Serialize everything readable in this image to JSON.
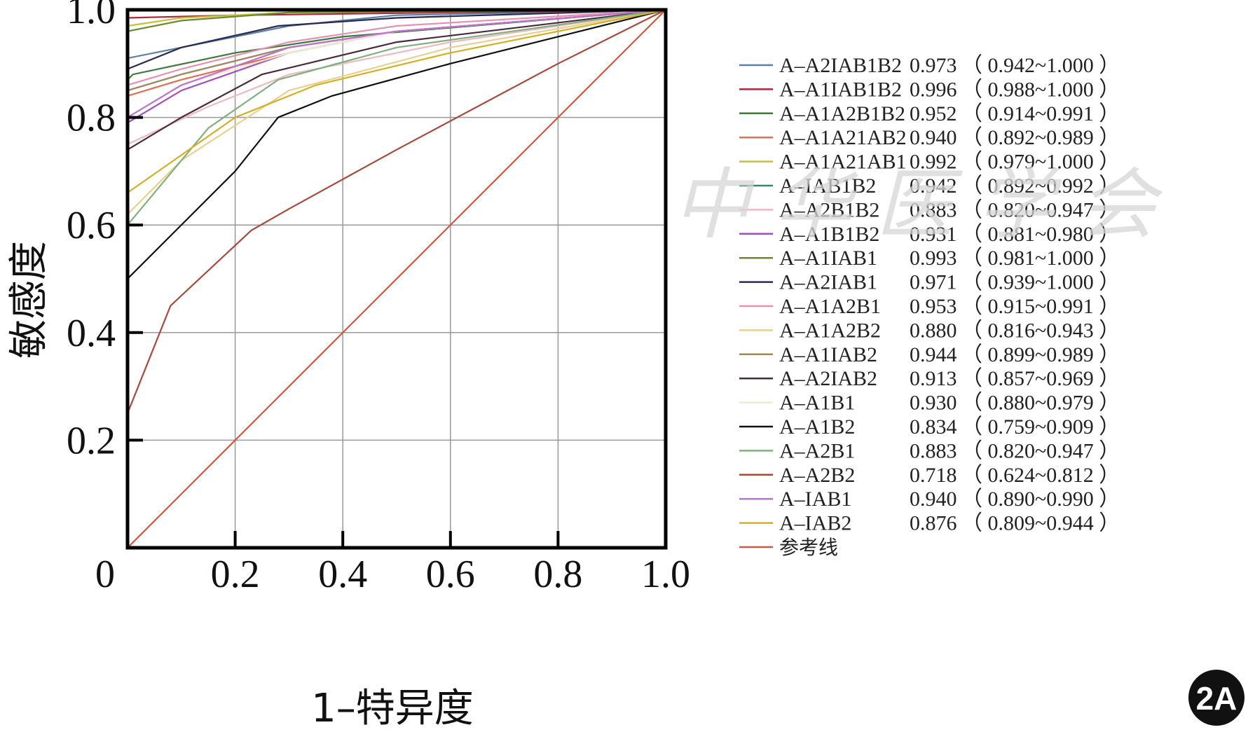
{
  "chart_data": {
    "type": "line",
    "xlabel": "1–特异度",
    "ylabel": "敏感度",
    "xlim": [
      0,
      1
    ],
    "ylim": [
      0,
      1
    ],
    "x_ticks": [
      "0",
      "0.2",
      "0.4",
      "0.6",
      "0.8",
      "1.0"
    ],
    "y_ticks": [
      "0.2",
      "0.4",
      "0.6",
      "0.8",
      "1.0"
    ],
    "grid": true,
    "legend_position": "right",
    "series": [
      {
        "name": "A–A2IAB1B2",
        "auc": "0.973",
        "ci": "（ 0.942~1.000 ）",
        "color": "#5b7fa6",
        "x": [
          0,
          0,
          0.1,
          0.3,
          0.5,
          1.0
        ],
        "y": [
          0,
          0.91,
          0.93,
          0.97,
          0.99,
          1.0
        ]
      },
      {
        "name": "A–A1IAB1B2",
        "auc": "0.996",
        "ci": "（ 0.988~1.000 ）",
        "color": "#b0243c",
        "x": [
          0,
          0,
          0.2,
          1.0
        ],
        "y": [
          0,
          0.985,
          0.99,
          1.0
        ]
      },
      {
        "name": "A–A1A2B1B2",
        "auc": "0.952",
        "ci": "（ 0.914~0.991 ）",
        "color": "#3f7a3a",
        "x": [
          0,
          0,
          0.01,
          0.2,
          0.4,
          1.0
        ],
        "y": [
          0,
          0.87,
          0.88,
          0.92,
          0.95,
          1.0
        ]
      },
      {
        "name": "A–A1A21AB2",
        "auc": "0.940",
        "ci": "（ 0.892~0.989 ）",
        "color": "#e07050",
        "x": [
          0,
          0,
          0.1,
          0.3,
          0.5,
          1.0
        ],
        "y": [
          0,
          0.84,
          0.87,
          0.92,
          0.96,
          1.0
        ]
      },
      {
        "name": "A–A1A21AB1",
        "auc": "0.992",
        "ci": "（ 0.979~1.000 ）",
        "color": "#c8c030",
        "x": [
          0,
          0,
          0.1,
          0.3,
          1.0
        ],
        "y": [
          0,
          0.97,
          0.985,
          0.995,
          1.0
        ]
      },
      {
        "name": "A–IAB1B2",
        "auc": "0.942",
        "ci": "（ 0.892~0.992 ）",
        "color": "#2e8a6a",
        "x": [
          0,
          0,
          0.1,
          0.3,
          0.5,
          1.0
        ],
        "y": [
          0,
          0.85,
          0.88,
          0.93,
          0.96,
          1.0
        ]
      },
      {
        "name": "A–A2B1B2",
        "auc": "0.883",
        "ci": "（ 0.820~0.947 ）",
        "color": "#f0b8c0",
        "x": [
          0,
          0,
          0.15,
          0.3,
          0.6,
          1.0
        ],
        "y": [
          0,
          0.75,
          0.82,
          0.88,
          0.94,
          1.0
        ]
      },
      {
        "name": "A–A1B1B2",
        "auc": "0.931",
        "ci": "（ 0.881~0.980 ）",
        "color": "#a050c0",
        "x": [
          0,
          0,
          0.1,
          0.3,
          0.5,
          1.0
        ],
        "y": [
          0,
          0.79,
          0.85,
          0.92,
          0.96,
          1.0
        ]
      },
      {
        "name": "A–A1IAB1",
        "auc": "0.993",
        "ci": "（ 0.981~1.000 ）",
        "color": "#6a8a30",
        "x": [
          0,
          0,
          0.1,
          0.3,
          1.0
        ],
        "y": [
          0,
          0.96,
          0.98,
          0.995,
          1.0
        ]
      },
      {
        "name": "A–A2IAB1",
        "auc": "0.971",
        "ci": "（ 0.939~1.000 ）",
        "color": "#2a2a55",
        "x": [
          0,
          0,
          0.1,
          0.28,
          0.5,
          1.0
        ],
        "y": [
          0,
          0.89,
          0.93,
          0.97,
          0.985,
          1.0
        ]
      },
      {
        "name": "A–A1A2B1",
        "auc": "0.953",
        "ci": "（ 0.915~0.991 ）",
        "color": "#e890b0",
        "x": [
          0,
          0,
          0.1,
          0.3,
          0.5,
          1.0
        ],
        "y": [
          0,
          0.86,
          0.89,
          0.94,
          0.97,
          1.0
        ]
      },
      {
        "name": "A–A1A2B2",
        "auc": "0.880",
        "ci": "（ 0.816~0.943 ）",
        "color": "#e8d090",
        "x": [
          0,
          0,
          0.1,
          0.3,
          0.6,
          1.0
        ],
        "y": [
          0,
          0.62,
          0.72,
          0.85,
          0.93,
          1.0
        ]
      },
      {
        "name": "A–A1IAB2",
        "auc": "0.944",
        "ci": "（ 0.899~0.989 ）",
        "color": "#a08a60",
        "x": [
          0,
          0,
          0.1,
          0.3,
          0.5,
          1.0
        ],
        "y": [
          0,
          0.85,
          0.88,
          0.93,
          0.96,
          1.0
        ]
      },
      {
        "name": "A–A2IAB2",
        "auc": "0.913",
        "ci": "（ 0.857~0.969 ）",
        "color": "#4a2a3a",
        "x": [
          0,
          0,
          0.1,
          0.25,
          0.5,
          1.0
        ],
        "y": [
          0,
          0.74,
          0.8,
          0.88,
          0.94,
          1.0
        ]
      },
      {
        "name": "A–A1B1",
        "auc": "0.930",
        "ci": "（ 0.880~0.979 ）",
        "color": "#f0ecd0",
        "x": [
          0,
          0,
          0.1,
          0.3,
          0.5,
          1.0
        ],
        "y": [
          0,
          0.8,
          0.86,
          0.92,
          0.96,
          1.0
        ]
      },
      {
        "name": "A–A1B2",
        "auc": "0.834",
        "ci": "（ 0.759~0.909 ）",
        "color": "#111111",
        "x": [
          0,
          0,
          0.2,
          0.28,
          0.38,
          0.6,
          1.0
        ],
        "y": [
          0,
          0.5,
          0.7,
          0.8,
          0.84,
          0.9,
          1.0
        ]
      },
      {
        "name": "A–A2B1",
        "auc": "0.883",
        "ci": "（ 0.820~0.947 ）",
        "color": "#80b080",
        "x": [
          0,
          0,
          0.15,
          0.28,
          0.5,
          1.0
        ],
        "y": [
          0,
          0.6,
          0.78,
          0.87,
          0.93,
          1.0
        ]
      },
      {
        "name": "A–A2B2",
        "auc": "0.718",
        "ci": "（ 0.624~0.812 ）",
        "color": "#a84a3a",
        "x": [
          0,
          0,
          0.08,
          0.23,
          0.3,
          0.5,
          0.8,
          1.0
        ],
        "y": [
          0,
          0.25,
          0.45,
          0.59,
          0.63,
          0.74,
          0.9,
          1.0
        ]
      },
      {
        "name": "A–IAB1",
        "auc": "0.940",
        "ci": "（ 0.890~0.990 ）",
        "color": "#c070d0",
        "x": [
          0,
          0,
          0.1,
          0.3,
          0.5,
          1.0
        ],
        "y": [
          0,
          0.8,
          0.86,
          0.93,
          0.96,
          1.0
        ]
      },
      {
        "name": "A–IAB2",
        "auc": "0.876",
        "ci": "（ 0.809~0.944 ）",
        "color": "#d4b020",
        "x": [
          0,
          0,
          0.1,
          0.2,
          0.35,
          0.6,
          1.0
        ],
        "y": [
          0,
          0.66,
          0.73,
          0.8,
          0.86,
          0.92,
          1.0
        ]
      },
      {
        "name": "参考线",
        "auc": "",
        "ci": "",
        "color": "#c85a40",
        "x": [
          0,
          1.0
        ],
        "y": [
          0,
          1.0
        ]
      }
    ]
  },
  "watermark": {
    "text": "中 华 医 学 会"
  },
  "badge": {
    "label": "2A"
  }
}
